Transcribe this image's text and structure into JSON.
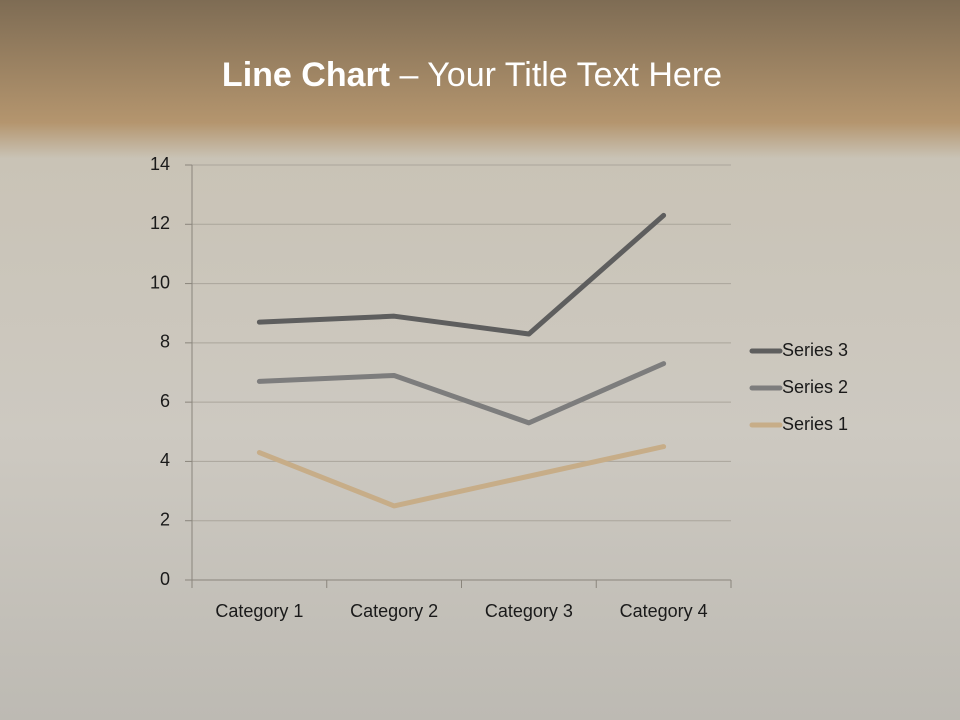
{
  "chart_data": {
    "type": "line",
    "stacked": true,
    "title": {
      "bold": "Line Chart",
      "rest": "– Your Title Text Here"
    },
    "categories": [
      "Category 1",
      "Category 2",
      "Category 3",
      "Category 4"
    ],
    "series": [
      {
        "name": "Series 1",
        "color": "#c7ad88",
        "values": [
          4.3,
          2.5,
          3.5,
          4.5
        ]
      },
      {
        "name": "Series 2",
        "color": "#7d7d7d",
        "values": [
          2.4,
          4.4,
          1.8,
          2.8
        ]
      },
      {
        "name": "Series 3",
        "color": "#5e5e5e",
        "values": [
          2,
          2,
          3,
          5
        ]
      }
    ],
    "ylim": [
      0,
      14
    ],
    "yticks": [
      0,
      2,
      4,
      6,
      8,
      10,
      12,
      14
    ],
    "grid": true,
    "legend": "right"
  }
}
